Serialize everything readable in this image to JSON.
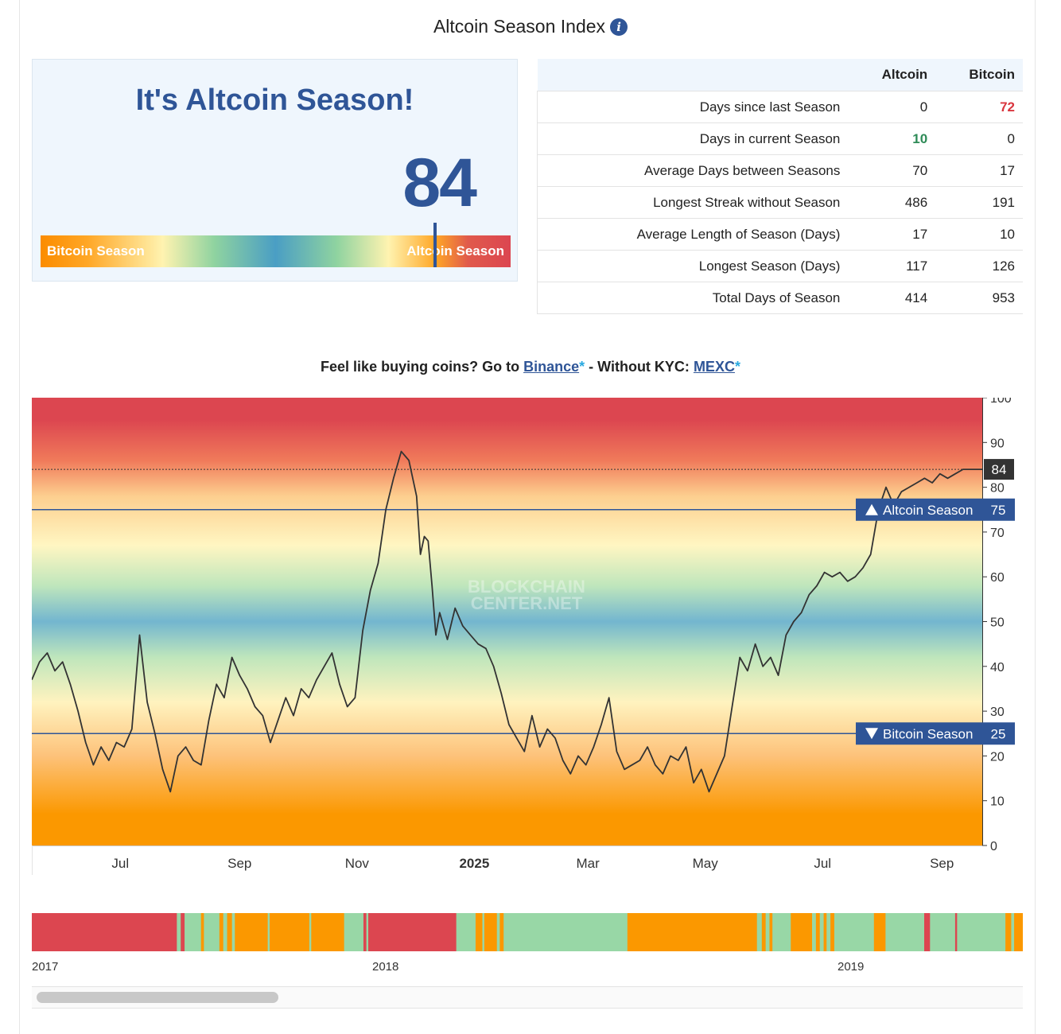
{
  "page": {
    "title": "Altcoin Season Index",
    "info_icon": "info-icon"
  },
  "status": {
    "title": "It's Altcoin Season!",
    "index_value": "84",
    "bar_left_label": "Bitcoin Season",
    "bar_right_label": "Altcoin Season",
    "marker_value": 84
  },
  "stats": {
    "headers": [
      "",
      "Altcoin",
      "Bitcoin"
    ],
    "rows": [
      {
        "label": "Days since last Season",
        "altcoin": "0",
        "bitcoin": "72"
      },
      {
        "label": "Days in current Season",
        "altcoin": "10",
        "bitcoin": "0"
      },
      {
        "label": "Average Days between Seasons",
        "altcoin": "70",
        "bitcoin": "17"
      },
      {
        "label": "Longest Streak without Season",
        "altcoin": "486",
        "bitcoin": "191"
      },
      {
        "label": "Average Length of Season (Days)",
        "altcoin": "17",
        "bitcoin": "10"
      },
      {
        "label": "Longest Season (Days)",
        "altcoin": "117",
        "bitcoin": "126"
      },
      {
        "label": "Total Days of Season",
        "altcoin": "414",
        "bitcoin": "953"
      }
    ],
    "colors": {
      "highlight_red": "#d9363e",
      "highlight_green": "#2e8b57"
    }
  },
  "promo": {
    "text1": "Feel like buying coins? Go to ",
    "link1": "Binance",
    "asterisk1": "*",
    "text2": " - Without KYC: ",
    "link2": "MEXC",
    "asterisk2": "*"
  },
  "chart_data": [
    {
      "type": "line",
      "watermark": [
        "BLOCKCHAIN",
        "CENTER.NET"
      ],
      "ylim": [
        0,
        100
      ],
      "y_ticks": [
        0,
        10,
        20,
        30,
        40,
        50,
        60,
        70,
        80,
        90,
        100
      ],
      "x_ticks": [
        {
          "label": "Jul",
          "bold": false,
          "x": 46
        },
        {
          "label": "Sep",
          "bold": false,
          "x": 108
        },
        {
          "label": "Nov",
          "bold": false,
          "x": 169
        },
        {
          "label": "2025",
          "bold": true,
          "x": 230
        },
        {
          "label": "Mar",
          "bold": false,
          "x": 289
        },
        {
          "label": "May",
          "bold": false,
          "x": 350
        },
        {
          "label": "Jul",
          "bold": false,
          "x": 411
        },
        {
          "label": "Sep",
          "bold": false,
          "x": 473
        }
      ],
      "x_range": [
        0,
        494
      ],
      "thresholds": [
        {
          "label": "Altcoin Season",
          "value": 75,
          "arrow": "up"
        },
        {
          "label": "Bitcoin Season",
          "value": 25,
          "arrow": "down"
        }
      ],
      "current": {
        "value": 84,
        "label": "84"
      },
      "series": [
        {
          "color": "#333333",
          "x": [
            0,
            4,
            8,
            12,
            16,
            20,
            24,
            28,
            32,
            36,
            40,
            44,
            48,
            52,
            56,
            60,
            64,
            68,
            72,
            76,
            80,
            84,
            88,
            92,
            96,
            100,
            104,
            108,
            112,
            116,
            120,
            124,
            128,
            132,
            136,
            140,
            144,
            148,
            152,
            156,
            160,
            164,
            168,
            172,
            176,
            180,
            184,
            188,
            192,
            196,
            200,
            202,
            204,
            206,
            208,
            210,
            212,
            216,
            220,
            224,
            228,
            232,
            236,
            240,
            244,
            248,
            252,
            256,
            260,
            264,
            268,
            272,
            276,
            280,
            284,
            288,
            292,
            296,
            300,
            304,
            308,
            312,
            316,
            320,
            324,
            328,
            332,
            336,
            340,
            344,
            348,
            352,
            356,
            360,
            364,
            368,
            372,
            376,
            380,
            384,
            388,
            392,
            396,
            400,
            404,
            408,
            412,
            416,
            420,
            424,
            428,
            432,
            436,
            440,
            444,
            448,
            452,
            456,
            460,
            464,
            468,
            472,
            476,
            480,
            484,
            488,
            490,
            492,
            494
          ],
          "y": [
            37,
            41,
            43,
            39,
            41,
            36,
            30,
            23,
            18,
            22,
            19,
            23,
            22,
            26,
            47,
            32,
            25,
            17,
            12,
            20,
            22,
            19,
            18,
            28,
            36,
            33,
            42,
            38,
            35,
            31,
            29,
            23,
            28,
            33,
            29,
            35,
            33,
            37,
            40,
            43,
            36,
            31,
            33,
            48,
            57,
            63,
            75,
            82,
            88,
            86,
            78,
            65,
            69,
            68,
            58,
            47,
            52,
            46,
            53,
            49,
            47,
            45,
            44,
            40,
            34,
            27,
            24,
            21,
            29,
            22,
            26,
            24,
            19,
            16,
            20,
            18,
            22,
            27,
            33,
            21,
            17,
            18,
            19,
            22,
            18,
            16,
            20,
            19,
            22,
            14,
            17,
            12,
            16,
            20,
            31,
            42,
            39,
            45,
            40,
            42,
            38,
            47,
            50,
            52,
            56,
            58,
            61,
            60,
            61,
            59,
            60,
            62,
            65,
            75,
            80,
            76,
            79,
            80,
            81,
            82,
            81,
            83,
            82,
            83,
            84,
            84,
            84,
            84,
            84
          ]
        }
      ]
    },
    {
      "type": "bar",
      "description_none": "",
      "x_ticks": [
        {
          "label": "2017",
          "at": 0.0
        },
        {
          "label": "2018",
          "at": 0.3435
        },
        {
          "label": "2019",
          "at": 0.813
        }
      ],
      "segments": [
        {
          "season": "bitcoin",
          "span": 0.15
        },
        {
          "season": "neutral",
          "span": 0.004
        },
        {
          "season": "bitcoin",
          "span": 0.004
        },
        {
          "season": "neutral",
          "span": 0.017
        },
        {
          "season": "altcoin",
          "span": 0.003
        },
        {
          "season": "neutral",
          "span": 0.016
        },
        {
          "season": "altcoin",
          "span": 0.004
        },
        {
          "season": "neutral",
          "span": 0.004
        },
        {
          "season": "altcoin",
          "span": 0.005
        },
        {
          "season": "neutral",
          "span": 0.003
        },
        {
          "season": "altcoin",
          "span": 0.034
        },
        {
          "season": "neutral",
          "span": 0.002
        },
        {
          "season": "altcoin",
          "span": 0.041
        },
        {
          "season": "neutral",
          "span": 0.002
        },
        {
          "season": "altcoin",
          "span": 0.034
        },
        {
          "season": "neutral",
          "span": 0.02
        },
        {
          "season": "bitcoin",
          "span": 0.003
        },
        {
          "season": "neutral",
          "span": 0.002
        },
        {
          "season": "bitcoin",
          "span": 0.091
        },
        {
          "season": "neutral",
          "span": 0.02
        },
        {
          "season": "altcoin",
          "span": 0.007
        },
        {
          "season": "neutral",
          "span": 0.002
        },
        {
          "season": "altcoin",
          "span": 0.013
        },
        {
          "season": "neutral",
          "span": 0.003
        },
        {
          "season": "altcoin",
          "span": 0.004
        },
        {
          "season": "neutral",
          "span": 0.128
        },
        {
          "season": "altcoin",
          "span": 0.134
        },
        {
          "season": "neutral",
          "span": 0.005
        },
        {
          "season": "altcoin",
          "span": 0.004
        },
        {
          "season": "neutral",
          "span": 0.004
        },
        {
          "season": "altcoin",
          "span": 0.003
        },
        {
          "season": "neutral",
          "span": 0.019
        },
        {
          "season": "altcoin",
          "span": 0.022
        },
        {
          "season": "neutral",
          "span": 0.004
        },
        {
          "season": "altcoin",
          "span": 0.004
        },
        {
          "season": "neutral",
          "span": 0.004
        },
        {
          "season": "altcoin",
          "span": 0.003
        },
        {
          "season": "neutral",
          "span": 0.004
        },
        {
          "season": "altcoin",
          "span": 0.004
        },
        {
          "season": "neutral",
          "span": 0.041
        },
        {
          "season": "altcoin",
          "span": 0.012
        },
        {
          "season": "neutral",
          "span": 0.04
        },
        {
          "season": "bitcoin",
          "span": 0.006
        },
        {
          "season": "neutral",
          "span": 0.026
        },
        {
          "season": "bitcoin",
          "span": 0.002
        },
        {
          "season": "neutral",
          "span": 0.05
        },
        {
          "season": "altcoin",
          "span": 0.006
        },
        {
          "season": "neutral",
          "span": 0.003
        },
        {
          "season": "altcoin",
          "span": 0.009
        }
      ],
      "colors": {
        "bitcoin": "#dc4650",
        "altcoin": "#fb9800",
        "neutral": "#98d7a6"
      }
    }
  ]
}
